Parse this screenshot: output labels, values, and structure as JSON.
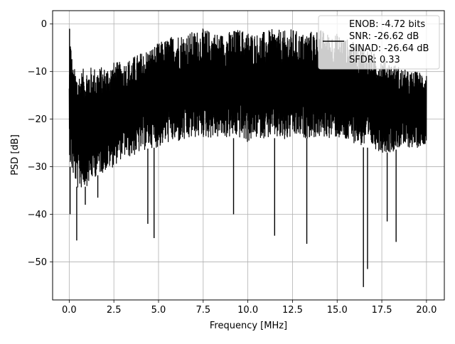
{
  "chart_data": {
    "type": "line",
    "title": "",
    "xlabel": "Frequency [MHz]",
    "ylabel": "PSD [dB]",
    "xlim": [
      -0.93,
      21.0
    ],
    "ylim": [
      -58.0,
      2.8
    ],
    "grid": true,
    "xticks": [
      0.0,
      2.5,
      5.0,
      7.5,
      10.0,
      12.5,
      15.0,
      17.5,
      20.0
    ],
    "xtick_labels": [
      "0.0",
      "2.5",
      "5.0",
      "7.5",
      "10.0",
      "12.5",
      "15.0",
      "17.5",
      "20.0"
    ],
    "yticks": [
      0,
      -10,
      -20,
      -30,
      -40,
      -50
    ],
    "ytick_labels": [
      "0",
      "−10",
      "−20",
      "−30",
      "−40",
      "−50"
    ],
    "line_color": "#000000",
    "legend": {
      "placement": "top-right",
      "entries": [
        "ENOB: -4.72 bits",
        "SNR: -26.62 dB",
        "SINAD: -26.64 dB",
        "SFDR: 0.33"
      ]
    },
    "series": [
      {
        "x_start": 0.0,
        "x_end": 20.0,
        "envelope_x": [
          0.0,
          0.05,
          0.2,
          0.5,
          1.0,
          1.5,
          2.0,
          2.5,
          3.0,
          3.5,
          4.0,
          4.5,
          5.0,
          5.5,
          6.0,
          6.5,
          7.0,
          7.5,
          8.0,
          8.5,
          9.0,
          9.5,
          10.0,
          10.5,
          11.0,
          11.5,
          12.0,
          12.5,
          13.0,
          13.5,
          14.0,
          14.5,
          15.0,
          15.5,
          16.0,
          16.5,
          17.0,
          17.5,
          18.0,
          18.5,
          19.0,
          19.5,
          20.0
        ],
        "envelope_top": [
          -12,
          -1,
          -9,
          -10,
          -9,
          -9,
          -9,
          -8,
          -8,
          -7,
          -6,
          -5,
          -4,
          -3,
          -2,
          -2,
          -1.5,
          -1,
          -1.5,
          -2,
          -1.5,
          -1,
          -1.5,
          -2,
          -1.5,
          -1,
          -1.5,
          -1,
          -2,
          -1.5,
          -1,
          -2,
          -2,
          -3,
          -4,
          -4.5,
          -6,
          -7,
          -8,
          -9,
          -10,
          -10,
          -10
        ],
        "envelope_bottom": [
          -25,
          -30,
          -32,
          -35,
          -34,
          -32,
          -31,
          -30,
          -28,
          -28,
          -27,
          -26,
          -26,
          -25,
          -25,
          -25,
          -24,
          -24,
          -24,
          -24,
          -24,
          -24,
          -25,
          -24,
          -24,
          -24,
          -25,
          -24,
          -24,
          -24,
          -24,
          -24,
          -24,
          -25,
          -25,
          -26,
          -26,
          -27,
          -27,
          -26,
          -26,
          -26,
          -25
        ],
        "dips": [
          {
            "x": 0.05,
            "y": -40
          },
          {
            "x": 0.42,
            "y": -45.5
          },
          {
            "x": 0.9,
            "y": -38
          },
          {
            "x": 1.6,
            "y": -36.5
          },
          {
            "x": 4.4,
            "y": -42
          },
          {
            "x": 4.75,
            "y": -45
          },
          {
            "x": 9.2,
            "y": -40
          },
          {
            "x": 11.5,
            "y": -44.5
          },
          {
            "x": 13.3,
            "y": -46.2
          },
          {
            "x": 16.47,
            "y": -55.3
          },
          {
            "x": 16.7,
            "y": -51.5
          },
          {
            "x": 17.8,
            "y": -41.5
          },
          {
            "x": 18.3,
            "y": -45.8
          }
        ]
      }
    ]
  }
}
